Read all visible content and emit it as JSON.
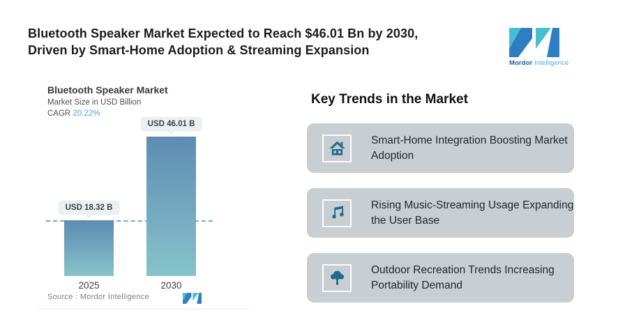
{
  "header": {
    "headline_line1": "Bluetooth Speaker Market Expected to Reach $46.01 Bn by 2030,",
    "headline_line2": "Driven by Smart-Home Adoption & Streaming Expansion"
  },
  "brand": {
    "name_bold": "Mordor",
    "name_light": "Intelligence"
  },
  "chart": {
    "title": "Bluetooth Speaker Market",
    "subtitle": "Market Size in USD Billion",
    "cagr_label": "CAGR",
    "cagr_value": "20.22%",
    "source": "Source :  Mordor Intelligence"
  },
  "chart_data": {
    "type": "bar",
    "categories": [
      "2025",
      "2030"
    ],
    "values": [
      18.32,
      46.01
    ],
    "bar_labels": [
      "USD 18.32 B",
      "USD 46.01 B"
    ],
    "title": "Bluetooth Speaker Market",
    "subtitle": "Market Size in USD Billion",
    "cagr": "20.22%",
    "ylabel": "Market Size (USD Billion)",
    "ylim": [
      0,
      50
    ],
    "reference_line_at": 18.32,
    "grid": false,
    "legend": false,
    "source": "Source : Mordor Intelligence"
  },
  "trends": {
    "heading": "Key Trends in the Market",
    "cards": [
      {
        "icon": "smart-home-icon",
        "text": "Smart-Home Integration Boosting Market Adoption"
      },
      {
        "icon": "music-note-icon",
        "text": "Rising Music-Streaming Usage Expanding the User Base"
      },
      {
        "icon": "tree-icon",
        "text": "Outdoor Recreation Trends Increasing Portability Demand"
      }
    ]
  },
  "colors": {
    "bar_top": "#5d8cb2",
    "bar_bottom": "#87c3ca",
    "dashed": "#6fa6d2",
    "cagr": "#55a6d9",
    "card_bg": "#c9ced3",
    "icon_color": "#25688c",
    "brand_teal": "#45bfce",
    "brand_blue": "#2e7fc2",
    "pill_bg": "#edf0f2",
    "brand_text_bold": "#1d5c9e",
    "brand_text_light": "#53a8dc"
  }
}
